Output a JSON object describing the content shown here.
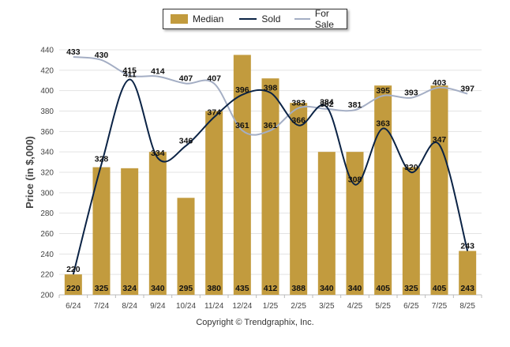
{
  "chart_data": {
    "type": "bar",
    "ylabel": "Price (in $,000)",
    "xlabel": "",
    "ylim": [
      200,
      440
    ],
    "yticks": [
      200,
      220,
      240,
      260,
      280,
      300,
      320,
      340,
      360,
      380,
      400,
      420,
      440
    ],
    "grid": true,
    "legend_position": "top-center",
    "categories": [
      "6/24",
      "7/24",
      "8/24",
      "9/24",
      "10/24",
      "11/24",
      "12/24",
      "1/25",
      "2/25",
      "3/25",
      "4/25",
      "5/25",
      "6/25",
      "7/25",
      "8/25"
    ],
    "series": [
      {
        "name": "Median",
        "type": "bar",
        "color": "#C29B3E",
        "values": [
          220,
          325,
          324,
          340,
          295,
          380,
          435,
          412,
          388,
          340,
          340,
          405,
          325,
          405,
          243
        ]
      },
      {
        "name": "Sold",
        "type": "line",
        "color": "#0B2345",
        "values": [
          220,
          328,
          411,
          334,
          346,
          374,
          396,
          398,
          366,
          384,
          308,
          363,
          320,
          347,
          243
        ]
      },
      {
        "name": "For Sale",
        "type": "line",
        "color": "#A4AEC4",
        "values": [
          433,
          430,
          415,
          414,
          407,
          407,
          361,
          361,
          383,
          382,
          381,
          395,
          393,
          403,
          397
        ]
      }
    ]
  },
  "legend": {
    "items": [
      {
        "label": "Median",
        "color": "#C29B3E",
        "kind": "bar"
      },
      {
        "label": "Sold",
        "color": "#0B2345",
        "kind": "line"
      },
      {
        "label": "For Sale",
        "color": "#A4AEC4",
        "kind": "line"
      }
    ]
  },
  "footer": {
    "copyright": "Copyright © Trendgraphix, Inc."
  }
}
